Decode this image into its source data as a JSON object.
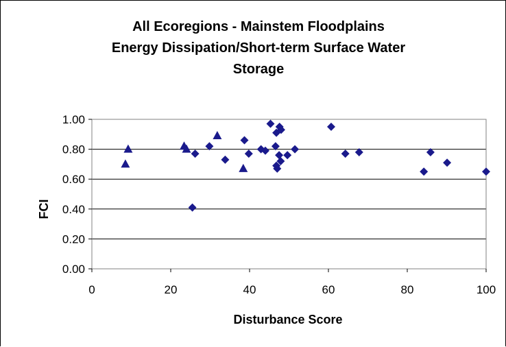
{
  "chart_data": {
    "type": "scatter",
    "title_lines": [
      "All Ecoregions - Mainstem Floodplains",
      "Energy Dissipation/Short-term Surface Water",
      "Storage"
    ],
    "xlabel": "Disturbance Score",
    "ylabel": "FCI",
    "xlim": [
      0,
      100
    ],
    "ylim": [
      0,
      1.0
    ],
    "x_ticks": [
      0,
      20,
      40,
      60,
      80,
      100
    ],
    "x_tick_labels": [
      "0",
      "20",
      "40",
      "60",
      "80",
      "100"
    ],
    "y_ticks": [
      0,
      0.2,
      0.4,
      0.6,
      0.8,
      1.0
    ],
    "y_tick_labels": [
      "0.00",
      "0.20",
      "0.40",
      "0.60",
      "0.80",
      "1.00"
    ],
    "grid": "horizontal",
    "marker_color": "#1a1a8c",
    "series": [
      {
        "marker": "diamond",
        "points": [
          [
            25.5,
            0.41
          ],
          [
            26.2,
            0.77
          ],
          [
            29.8,
            0.82
          ],
          [
            33.8,
            0.73
          ],
          [
            38.7,
            0.86
          ],
          [
            39.8,
            0.77
          ],
          [
            42.9,
            0.8
          ],
          [
            44.0,
            0.79
          ],
          [
            45.3,
            0.97
          ],
          [
            46.6,
            0.82
          ],
          [
            46.8,
            0.91
          ],
          [
            46.8,
            0.69
          ],
          [
            47.0,
            0.67
          ],
          [
            47.5,
            0.76
          ],
          [
            47.6,
            0.95
          ],
          [
            47.9,
            0.72
          ],
          [
            48.0,
            0.93
          ],
          [
            49.6,
            0.76
          ],
          [
            51.5,
            0.8
          ],
          [
            60.7,
            0.95
          ],
          [
            64.3,
            0.77
          ],
          [
            67.8,
            0.78
          ],
          [
            84.2,
            0.65
          ],
          [
            85.9,
            0.78
          ],
          [
            90.1,
            0.71
          ],
          [
            100.0,
            0.65
          ]
        ]
      },
      {
        "marker": "triangle",
        "points": [
          [
            8.5,
            0.7
          ],
          [
            9.2,
            0.8
          ],
          [
            23.4,
            0.82
          ],
          [
            24.0,
            0.8
          ],
          [
            31.8,
            0.89
          ],
          [
            38.4,
            0.67
          ]
        ]
      }
    ]
  }
}
